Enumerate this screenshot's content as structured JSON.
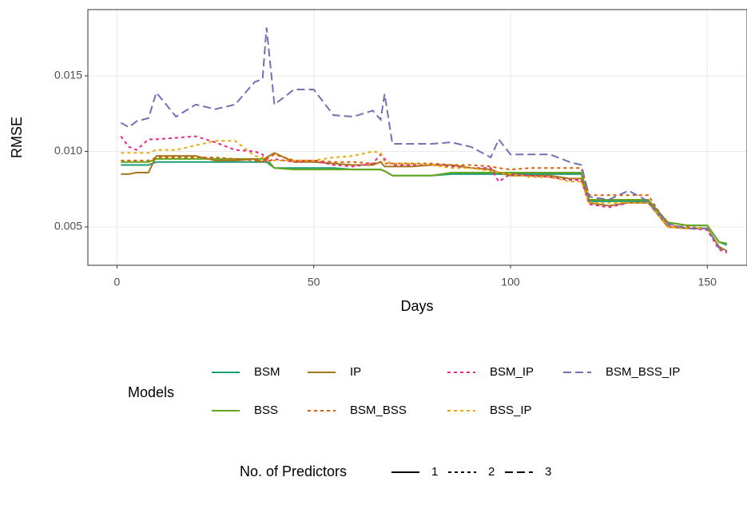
{
  "chart_data": {
    "type": "line",
    "x_label": "Days",
    "y_label": "RMSE",
    "legend_title": "Models",
    "linetype_legend_title": "No. of Predictors",
    "predictor_levels": [
      1,
      2,
      3
    ],
    "x": [
      1,
      3,
      5,
      8,
      10,
      15,
      20,
      25,
      30,
      35,
      37,
      38,
      40,
      45,
      50,
      55,
      60,
      65,
      67,
      68,
      70,
      75,
      80,
      85,
      90,
      95,
      97,
      100,
      105,
      110,
      115,
      118,
      120,
      125,
      130,
      135,
      140,
      145,
      150,
      153,
      155
    ],
    "series": [
      {
        "name": "BSM",
        "color": "#1b9e77",
        "predictors": 1,
        "values": [
          0.0091,
          0.0091,
          0.0091,
          0.0091,
          0.0093,
          0.0093,
          0.0093,
          0.0093,
          0.0093,
          0.0093,
          0.0093,
          0.0093,
          0.0089,
          0.0089,
          0.0089,
          0.0089,
          0.0088,
          0.0088,
          0.0088,
          0.0087,
          0.0084,
          0.0084,
          0.0084,
          0.0085,
          0.0085,
          0.0085,
          0.0085,
          0.0085,
          0.0085,
          0.0085,
          0.0085,
          0.0085,
          0.0067,
          0.0067,
          0.0067,
          0.0067,
          0.0053,
          0.0051,
          0.0051,
          0.004,
          0.0038
        ]
      },
      {
        "name": "BSS",
        "color": "#66a61e",
        "predictors": 1,
        "values": [
          0.0093,
          0.0093,
          0.0093,
          0.0093,
          0.0095,
          0.0095,
          0.0095,
          0.0095,
          0.0095,
          0.0095,
          0.0095,
          0.0095,
          0.0089,
          0.0088,
          0.0088,
          0.0088,
          0.0088,
          0.0088,
          0.0088,
          0.0087,
          0.0084,
          0.0084,
          0.0084,
          0.0086,
          0.0086,
          0.0086,
          0.0086,
          0.0086,
          0.0086,
          0.0086,
          0.0086,
          0.0086,
          0.0068,
          0.0068,
          0.0068,
          0.0068,
          0.0053,
          0.0051,
          0.0051,
          0.004,
          0.0039
        ]
      },
      {
        "name": "IP",
        "color": "#a6761d",
        "predictors": 1,
        "values": [
          0.0085,
          0.0085,
          0.0086,
          0.0086,
          0.0097,
          0.0097,
          0.0097,
          0.0094,
          0.0094,
          0.0095,
          0.0093,
          0.0096,
          0.0099,
          0.0093,
          0.0093,
          0.0092,
          0.0091,
          0.0091,
          0.0093,
          0.009,
          0.009,
          0.009,
          0.0091,
          0.0091,
          0.0089,
          0.0088,
          0.0086,
          0.0084,
          0.0084,
          0.0084,
          0.0082,
          0.0082,
          0.0066,
          0.0064,
          0.0066,
          0.0066,
          0.005,
          0.0049,
          0.0049,
          0.0037,
          0.0034
        ]
      },
      {
        "name": "BSM_BSS",
        "color": "#d95f02",
        "predictors": 2,
        "values": [
          0.0094,
          0.0094,
          0.0094,
          0.0094,
          0.0096,
          0.0096,
          0.0096,
          0.0096,
          0.0095,
          0.0094,
          0.0093,
          0.0095,
          0.0098,
          0.0094,
          0.0094,
          0.0093,
          0.0093,
          0.0092,
          0.0093,
          0.0092,
          0.0092,
          0.0092,
          0.0092,
          0.0091,
          0.0091,
          0.009,
          0.0089,
          0.0088,
          0.0089,
          0.0089,
          0.0089,
          0.0089,
          0.0071,
          0.0071,
          0.0071,
          0.0071,
          0.0051,
          0.005,
          0.0049,
          0.0036,
          0.0033
        ]
      },
      {
        "name": "BSM_IP",
        "color": "#e7298a",
        "predictors": 2,
        "values": [
          0.011,
          0.0103,
          0.0101,
          0.0108,
          0.0108,
          0.0109,
          0.011,
          0.0106,
          0.0101,
          0.01,
          0.0098,
          0.0093,
          0.0095,
          0.0093,
          0.0094,
          0.0091,
          0.009,
          0.0092,
          0.0098,
          0.0095,
          0.0091,
          0.0091,
          0.0091,
          0.009,
          0.0089,
          0.0089,
          0.008,
          0.0085,
          0.0084,
          0.0083,
          0.0081,
          0.0081,
          0.0065,
          0.0063,
          0.0066,
          0.0066,
          0.005,
          0.0049,
          0.0048,
          0.0035,
          0.0033
        ]
      },
      {
        "name": "BSS_IP",
        "color": "#e6ab02",
        "predictors": 2,
        "values": [
          0.0099,
          0.0099,
          0.0099,
          0.0099,
          0.0101,
          0.0101,
          0.0104,
          0.0107,
          0.0107,
          0.0097,
          0.0096,
          0.0094,
          0.0094,
          0.0094,
          0.0094,
          0.0096,
          0.0097,
          0.01,
          0.0099,
          0.0093,
          0.0092,
          0.0092,
          0.0091,
          0.0089,
          0.0089,
          0.0087,
          0.0086,
          0.0085,
          0.0083,
          0.0083,
          0.008,
          0.008,
          0.0066,
          0.0066,
          0.0066,
          0.0066,
          0.005,
          0.0049,
          0.0049,
          0.0036,
          0.0034
        ]
      },
      {
        "name": "BSM_BSS_IP",
        "color": "#7570b3",
        "predictors": 3,
        "values": [
          0.0119,
          0.0116,
          0.012,
          0.0122,
          0.0139,
          0.0123,
          0.0131,
          0.0128,
          0.0131,
          0.0146,
          0.0148,
          0.0182,
          0.0131,
          0.0141,
          0.0141,
          0.0124,
          0.0123,
          0.0127,
          0.0121,
          0.0138,
          0.0105,
          0.0105,
          0.0105,
          0.0106,
          0.0103,
          0.0096,
          0.0108,
          0.0098,
          0.0098,
          0.0098,
          0.0093,
          0.0091,
          0.007,
          0.0068,
          0.0074,
          0.0067,
          0.0052,
          0.0049,
          0.0049,
          0.0036,
          0.0034
        ]
      }
    ],
    "xlim": [
      -7.4,
      160.1
    ],
    "ylim": [
      0.00246,
      0.01939
    ],
    "xticks": [
      0,
      50,
      100,
      150
    ],
    "yticks": [
      0.005,
      {
        "value": 0.01,
        "label": "0.010"
      },
      0.015
    ],
    "grid": true
  }
}
